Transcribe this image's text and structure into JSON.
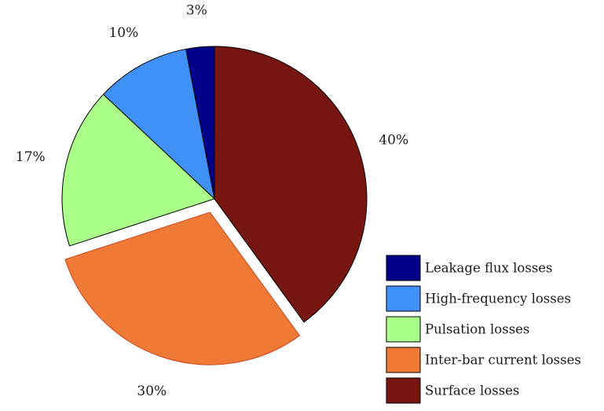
{
  "chart_data": {
    "type": "pie",
    "title": "",
    "slices": [
      {
        "label": "Leakage flux losses",
        "value": 3,
        "display": "3%",
        "color": "#000088",
        "stroke": "#000000",
        "exploded": false
      },
      {
        "label": "High-frequency losses",
        "value": 10,
        "display": "10%",
        "color": "#3f91f5",
        "stroke": "#000000",
        "exploded": false
      },
      {
        "label": "Pulsation losses",
        "value": 17,
        "display": "17%",
        "color": "#aaff88",
        "stroke": "#000000",
        "exploded": false
      },
      {
        "label": "Inter-bar current losses",
        "value": 30,
        "display": "30%",
        "color": "#ef7a35",
        "stroke": "#cc4422",
        "exploded": true
      },
      {
        "label": "Surface losses",
        "value": 40,
        "display": "40%",
        "color": "#771510",
        "stroke": "#000000",
        "exploded": false
      }
    ],
    "legend_position": "bottom-right"
  }
}
